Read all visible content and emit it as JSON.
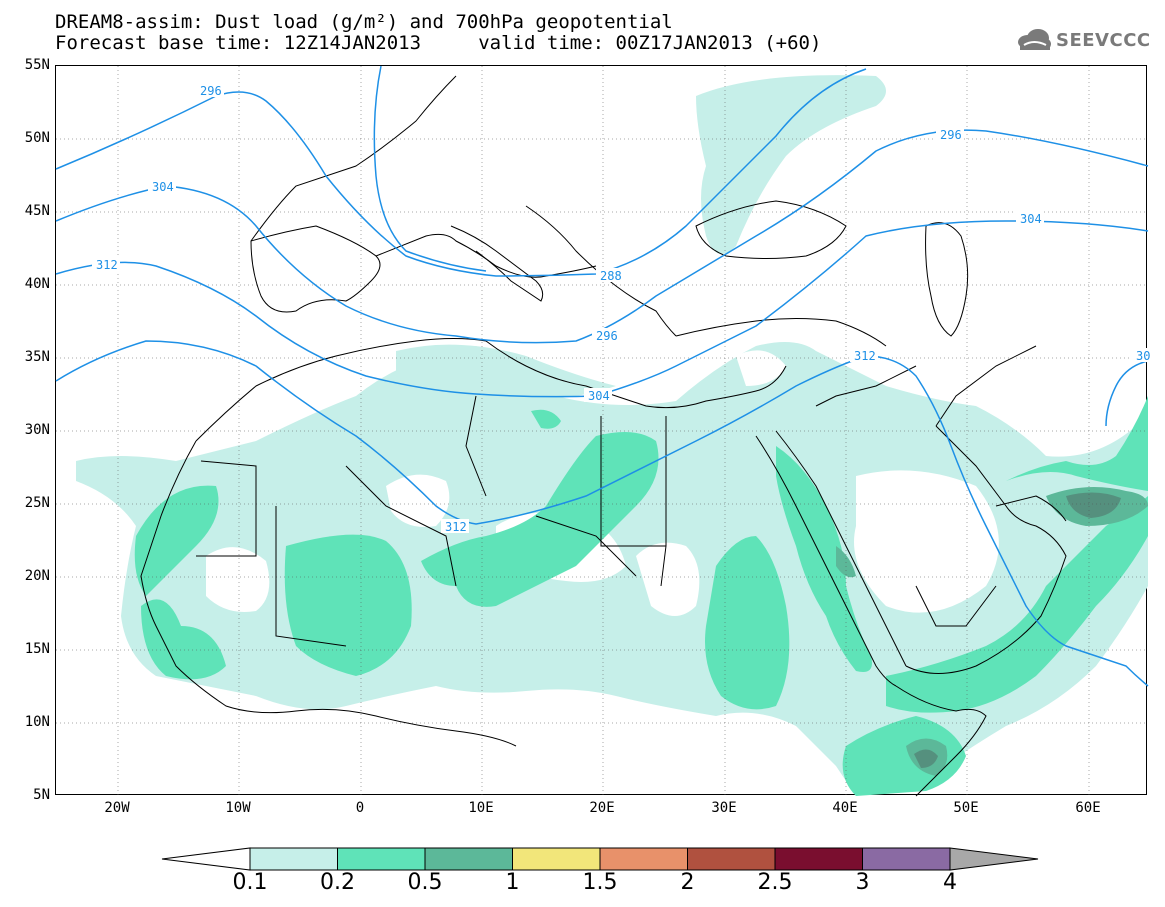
{
  "header": {
    "title_line1": "DREAM8-assim: Dust load (g/m²) and 700hPa geopotential",
    "title_line2": "Forecast base time: 12Z14JAN2013     valid time: 00Z17JAN2013 (+60)",
    "logo_text": "SEEVCCC"
  },
  "axes": {
    "lat_labels": [
      "55N",
      "50N",
      "45N",
      "40N",
      "35N",
      "30N",
      "25N",
      "20N",
      "15N",
      "10N",
      "5N"
    ],
    "lon_labels": [
      "20W",
      "10W",
      "0",
      "10E",
      "20E",
      "30E",
      "40E",
      "50E",
      "60E"
    ]
  },
  "contours": {
    "labels": [
      "296",
      "304",
      "312",
      "288",
      "296",
      "304",
      "296",
      "304",
      "312",
      "312",
      "30"
    ]
  },
  "colorbar": {
    "labels": [
      "0.1",
      "0.2",
      "0.5",
      "1",
      "1.5",
      "2",
      "2.5",
      "3",
      "4"
    ],
    "colors": [
      "#ffffff",
      "#c6efe9",
      "#5fe3b8",
      "#5cb899",
      "#f2e67a",
      "#e8916a",
      "#b0513f",
      "#7a0e2f",
      "#8a6aa3",
      "#a8a8a8"
    ]
  },
  "colors": {
    "contour_line": "#1e90e6",
    "coast_border": "#000000",
    "dust_light": "#c6efe9",
    "dust_mid": "#5fe3b8",
    "dust_dark": "#5cb899",
    "dust_darkest": "#55907e"
  }
}
